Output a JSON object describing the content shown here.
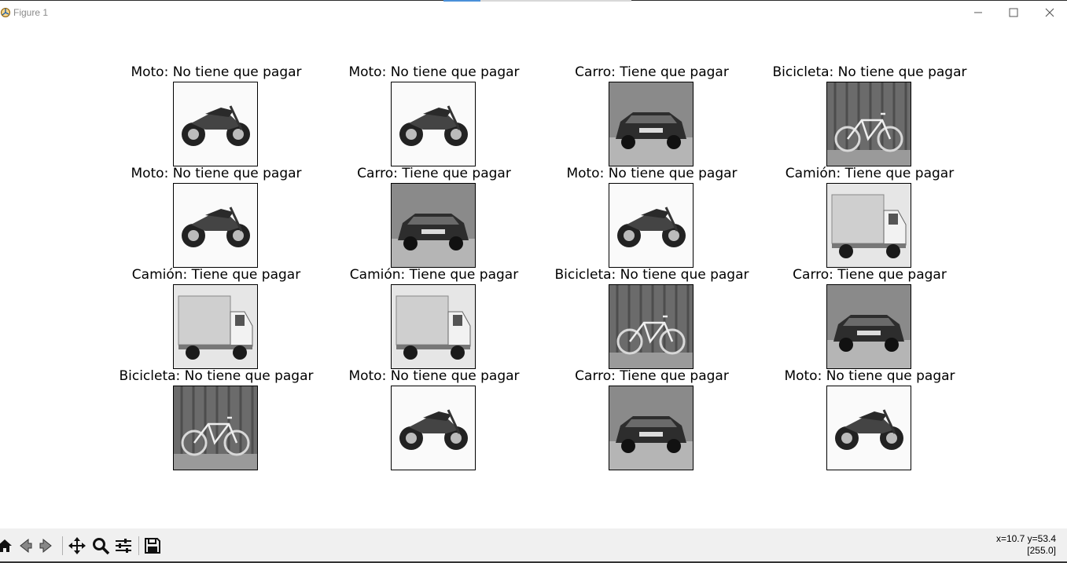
{
  "window": {
    "title": "Figure 1",
    "controls": [
      "minimize",
      "maximize",
      "close"
    ]
  },
  "figure": {
    "panels": [
      {
        "title": "Moto: No tiene que pagar",
        "image": "motorcycle-photo"
      },
      {
        "title": "Moto: No tiene que pagar",
        "image": "motorcycle-photo"
      },
      {
        "title": "Carro: Tiene que pagar",
        "image": "car-photo"
      },
      {
        "title": "Bicicleta: No tiene que pagar",
        "image": "bicycle-photo"
      },
      {
        "title": "Moto: No tiene que pagar",
        "image": "motorcycle-photo"
      },
      {
        "title": "Carro: Tiene que pagar",
        "image": "car-photo"
      },
      {
        "title": "Moto: No tiene que pagar",
        "image": "motorcycle-photo"
      },
      {
        "title": "Camión: Tiene que pagar",
        "image": "truck-photo"
      },
      {
        "title": "Camión: Tiene que pagar",
        "image": "truck-photo"
      },
      {
        "title": "Camión: Tiene que pagar",
        "image": "truck-photo"
      },
      {
        "title": "Bicicleta: No tiene que pagar",
        "image": "bicycle-photo"
      },
      {
        "title": "Carro: Tiene que pagar",
        "image": "car-photo"
      },
      {
        "title": "Bicicleta: No tiene que pagar",
        "image": "bicycle-photo"
      },
      {
        "title": "Moto: No tiene que pagar",
        "image": "motorcycle-photo"
      },
      {
        "title": "Carro: Tiene que pagar",
        "image": "car-photo"
      },
      {
        "title": "Moto: No tiene que pagar",
        "image": "motorcycle-photo"
      }
    ]
  },
  "toolbar": {
    "tools": [
      "home-icon",
      "back-icon",
      "forward-icon",
      "pan-icon",
      "zoom-icon",
      "configure-subplots-icon",
      "save-icon"
    ],
    "coords": "x=10.7 y=53.4",
    "pixel_value": "[255.0]"
  }
}
